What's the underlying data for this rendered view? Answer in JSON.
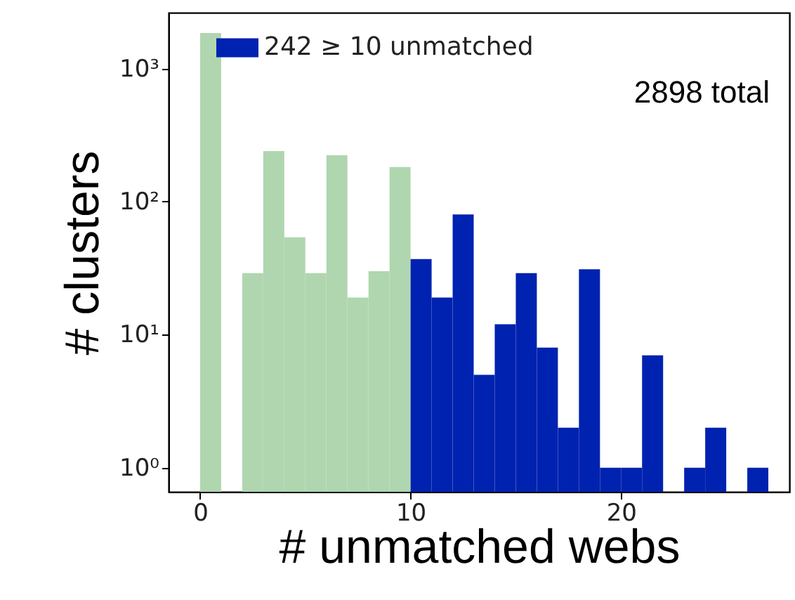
{
  "chart_data": {
    "type": "histogram",
    "xlabel": "# unmatched webs",
    "ylabel": "# clusters",
    "bins": [
      0,
      1,
      2,
      3,
      4,
      5,
      6,
      7,
      8,
      9,
      10,
      11,
      12,
      13,
      14,
      15,
      16,
      17,
      18,
      19,
      20,
      21,
      22,
      23,
      24,
      25,
      26,
      27
    ],
    "series": [
      {
        "color": "#b0d6b0",
        "values": [
          1850,
          null,
          29,
          240,
          54,
          29,
          223,
          19,
          30,
          182,
          null,
          null,
          null,
          null,
          null,
          null,
          null,
          null,
          null,
          null,
          null,
          null,
          null,
          null,
          null,
          null,
          null
        ]
      },
      {
        "name": "242 ≥ 10 unmatched",
        "color": "#0022b0",
        "values": [
          null,
          null,
          null,
          null,
          null,
          null,
          null,
          null,
          null,
          null,
          37,
          19,
          80,
          5,
          12,
          29,
          8,
          2,
          31,
          1,
          1,
          7,
          null,
          1,
          2,
          null,
          1
        ]
      }
    ],
    "xlim": [
      -1.5,
      28
    ],
    "xticks": [
      0,
      10,
      20
    ],
    "ylim": [
      0.66,
      2630
    ],
    "yticks": [
      {
        "value": 1,
        "label": "10⁰"
      },
      {
        "value": 10,
        "label": "10¹"
      },
      {
        "value": 100,
        "label": "10²"
      },
      {
        "value": 1000,
        "label": "10³"
      }
    ],
    "log": true,
    "grid": false,
    "legend": "top left",
    "annotations": [
      "2898 total"
    ]
  }
}
